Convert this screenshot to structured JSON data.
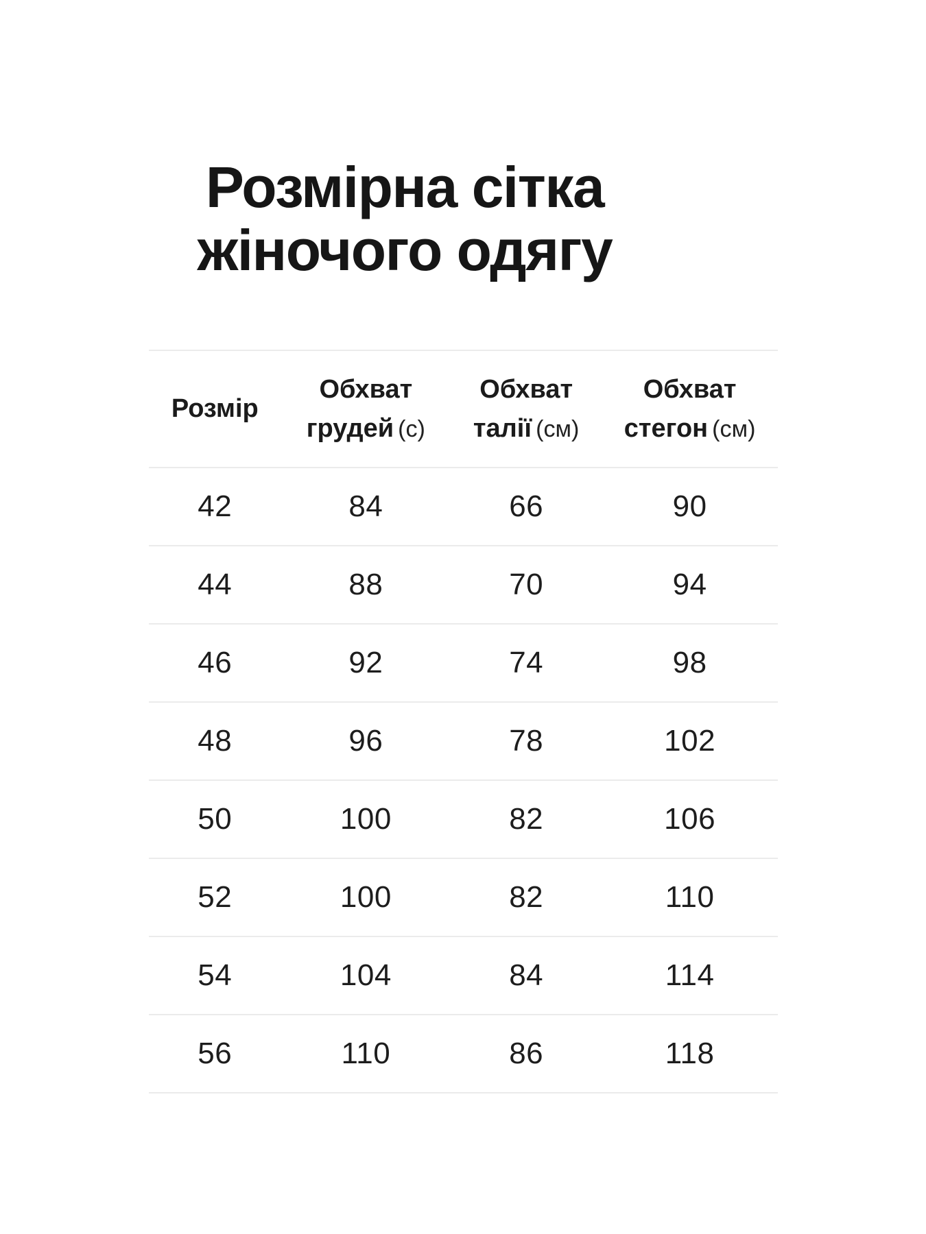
{
  "page": {
    "background_color": "#ffffff",
    "text_color": "#1d1d1d",
    "divider_color": "#ebebeb"
  },
  "title": {
    "line1": "Розмірна сітка",
    "line2": "жіночого одягу"
  },
  "table": {
    "columns": [
      {
        "line1": "Розмір",
        "line2": "",
        "unit": ""
      },
      {
        "line1": "Обхват",
        "line2": "грудей",
        "unit": "(с)"
      },
      {
        "line1": "Обхват",
        "line2": "талії",
        "unit": "(см)"
      },
      {
        "line1": "Обхват",
        "line2": "стегон",
        "unit": "(см)"
      }
    ],
    "rows": [
      [
        "42",
        "84",
        "66",
        "90"
      ],
      [
        "44",
        "88",
        "70",
        "94"
      ],
      [
        "46",
        "92",
        "74",
        "98"
      ],
      [
        "48",
        "96",
        "78",
        "102"
      ],
      [
        "50",
        "100",
        "82",
        "106"
      ],
      [
        "52",
        "100",
        "82",
        "110"
      ],
      [
        "54",
        "104",
        "84",
        "114"
      ],
      [
        "56",
        "110",
        "86",
        "118"
      ]
    ]
  }
}
